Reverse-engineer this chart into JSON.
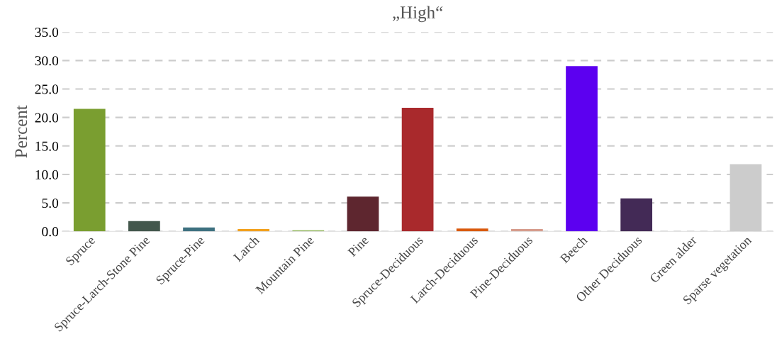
{
  "chart_data": {
    "type": "bar",
    "title": "„High“",
    "ylabel": "Percent",
    "categories": [
      "Spruce",
      "Spruce-Larch-Stone Pine",
      "Spruce-Pine",
      "Larch",
      "Mountain Pine",
      "Pine",
      "Spruce-Deciduous",
      "Larch-Deciduous",
      "Pine-Deciduous",
      "Beech",
      "Other Deciduous",
      "Green alder",
      "Sparse vegetation"
    ],
    "values": [
      21.5,
      1.8,
      0.7,
      0.4,
      0.2,
      6.1,
      21.7,
      0.5,
      0.4,
      29.0,
      5.8,
      0,
      11.8
    ],
    "colors": [
      "#7a9e30",
      "#43574c",
      "#3e7180",
      "#f2a01d",
      "#8db355",
      "#5e262f",
      "#a9292c",
      "#d95a0e",
      "#d69c8c",
      "#5c00f0",
      "#432a56",
      "#4a8f3a",
      "#cccccc"
    ],
    "ylim": [
      0,
      35
    ],
    "yticks": [
      {
        "value": 0,
        "label": "0.0"
      },
      {
        "value": 5,
        "label": "5.0"
      },
      {
        "value": 10,
        "label": "10.0"
      },
      {
        "value": 15,
        "label": "15.0"
      },
      {
        "value": 20,
        "label": "20.0"
      },
      {
        "value": 25,
        "label": "25.0"
      },
      {
        "value": 30,
        "label": "30.0"
      },
      {
        "value": 35,
        "label": "35.0"
      }
    ],
    "grid": "y"
  }
}
